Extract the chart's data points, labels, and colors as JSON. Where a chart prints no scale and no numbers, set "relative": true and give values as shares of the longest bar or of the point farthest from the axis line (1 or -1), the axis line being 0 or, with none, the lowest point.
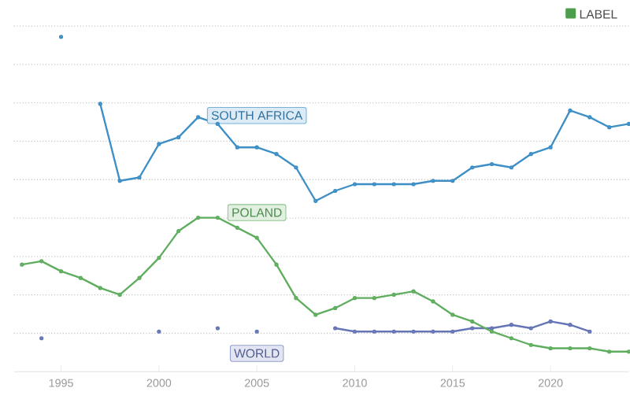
{
  "chart_data": {
    "type": "line",
    "relative": true,
    "grid": "y",
    "marker": "circle",
    "line_style": "solid",
    "xlim": [
      1992.6,
      2024
    ],
    "xticks": [
      1995,
      2000,
      2005,
      2010,
      2015,
      2020
    ],
    "annotations": [
      "LABEL"
    ],
    "series": [
      {
        "name": "SOUTH AFRICA",
        "color": "#3d8fc6",
        "x": [
          1995,
          1996,
          1997,
          1998,
          1999,
          2000,
          2001,
          2002,
          2003,
          2004,
          2005,
          2006,
          2007,
          2008,
          2009,
          2010,
          2011,
          2012,
          2013,
          2014,
          2015,
          2016,
          2017,
          2018,
          2019,
          2020,
          2021,
          2022,
          2023,
          2024
        ],
        "values": [
          1.0,
          null,
          0.8,
          0.57,
          0.58,
          0.68,
          0.7,
          0.76,
          0.74,
          0.67,
          0.67,
          0.65,
          0.61,
          0.51,
          0.54,
          0.56,
          0.56,
          0.56,
          0.56,
          0.57,
          0.57,
          0.61,
          0.62,
          0.61,
          0.65,
          0.67,
          0.78,
          0.76,
          0.73,
          0.74
        ]
      },
      {
        "name": "WORLD",
        "color": "#6575b5",
        "x": [
          1994,
          1995,
          2000,
          2001,
          2003,
          2004,
          2005,
          2006,
          2009,
          2010,
          2011,
          2012,
          2013,
          2014,
          2015,
          2016,
          2017,
          2018,
          2019,
          2020,
          2021,
          2022
        ],
        "values": [
          0.1,
          null,
          0.12,
          null,
          0.13,
          null,
          0.12,
          null,
          0.13,
          0.12,
          0.12,
          0.12,
          0.12,
          0.12,
          0.12,
          0.13,
          0.13,
          0.14,
          0.13,
          0.15,
          0.14,
          0.12
        ]
      },
      {
        "name": "POLAND",
        "color": "#5fae5f",
        "x": [
          1993,
          1994,
          1995,
          1996,
          1997,
          1998,
          1999,
          2000,
          2001,
          2002,
          2003,
          2004,
          2005,
          2006,
          2007,
          2008,
          2009,
          2010,
          2011,
          2012,
          2013,
          2014,
          2015,
          2016,
          2017,
          2018,
          2019,
          2020,
          2021,
          2022,
          2023,
          2024
        ],
        "values": [
          0.32,
          0.33,
          0.3,
          0.28,
          0.25,
          0.23,
          0.28,
          0.34,
          0.42,
          0.46,
          0.46,
          0.43,
          0.4,
          0.32,
          0.22,
          0.17,
          0.19,
          0.22,
          0.22,
          0.23,
          0.24,
          0.21,
          0.17,
          0.15,
          0.12,
          0.1,
          0.08,
          0.07,
          0.07,
          0.07,
          0.06,
          0.06
        ]
      }
    ]
  }
}
